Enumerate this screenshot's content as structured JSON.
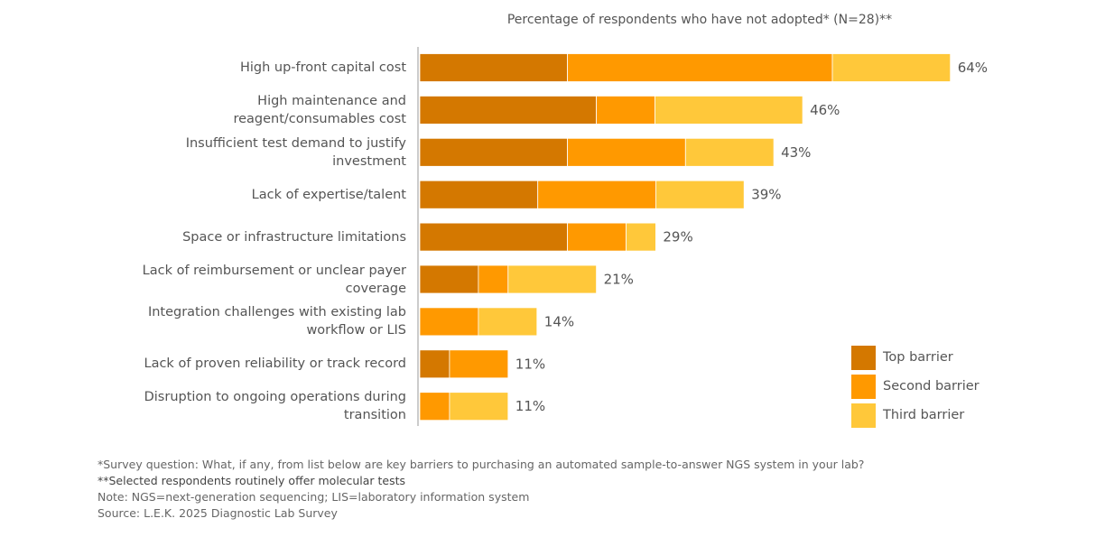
{
  "chart_data": {
    "type": "bar",
    "orientation": "horizontal",
    "stacked": true,
    "title": "Percentage of respondents who have not adopted* (N=28)**",
    "categories": [
      "High up-front capital cost",
      "High maintenance and\nreagent/consumables cost",
      "Insufficient test demand to justify\ninvestment",
      "Lack of expertise/talent",
      "Space or infrastructure limitations",
      "Lack of reimbursement or unclear payer\ncoverage",
      "Integration challenges with existing lab\nworkflow or LIS",
      "Lack of proven reliability or track record",
      "Disruption to ongoing operations during\ntransition"
    ],
    "series": [
      {
        "name": "Top barrier",
        "color": "#D47800",
        "values": [
          17.9,
          21.4,
          17.9,
          14.3,
          17.9,
          7.1,
          0,
          3.6,
          0
        ]
      },
      {
        "name": "Second barrier",
        "color": "#FF9900",
        "values": [
          32.1,
          7.1,
          14.3,
          14.3,
          7.1,
          3.6,
          7.1,
          7.1,
          3.6
        ]
      },
      {
        "name": "Third barrier",
        "color": "#FFC83A",
        "values": [
          14.3,
          17.9,
          10.7,
          10.7,
          3.6,
          10.7,
          7.1,
          0,
          7.1
        ]
      }
    ],
    "totals_labels": [
      "64%",
      "46%",
      "43%",
      "39%",
      "29%",
      "21%",
      "14%",
      "11%",
      "11%"
    ],
    "xlim": [
      0,
      100
    ],
    "grid": false,
    "legend_position": "bottom-right"
  },
  "footnotes": [
    "*Survey question: What, if any, from list below are key barriers to purchasing an automated sample-to-answer NGS system in your lab?",
    "**Selected respondents routinely offer molecular tests",
    "Note: NGS=next-generation sequencing; LIS=laboratory information system",
    "Source: L.E.K. 2025 Diagnostic Lab Survey"
  ]
}
